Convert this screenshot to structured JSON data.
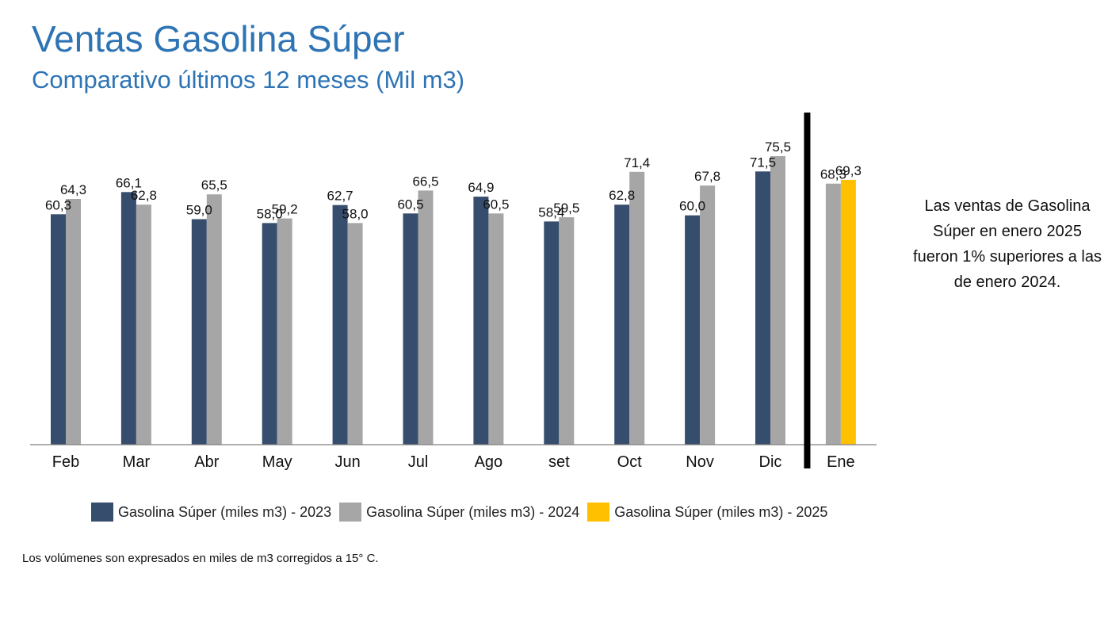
{
  "header": {
    "title": "Ventas Gasolina Súper",
    "subtitle": "Comparativo últimos 12 meses (Mil m3)"
  },
  "note": "Las ventas de Gasolina Súper en enero 2025 fueron 1% superiores a las de enero 2024.",
  "footnote": "Los volúmenes son expresados en miles de m3 corregidos a 15° C.",
  "colors": {
    "series_2023": "#374d6e",
    "series_2024": "#a6a6a6",
    "series_2025": "#ffc000",
    "title": "#2e74b5",
    "divider": "#000000"
  },
  "chart_data": {
    "type": "bar",
    "categories": [
      "Feb",
      "Mar",
      "Abr",
      "May",
      "Jun",
      "Jul",
      "Ago",
      "set",
      "Oct",
      "Nov",
      "Dic",
      "Ene"
    ],
    "series": [
      {
        "name": "Gasolina Súper (miles m3) - 2023",
        "values": [
          60.3,
          66.1,
          59.0,
          58.0,
          62.7,
          60.5,
          64.9,
          58.4,
          62.8,
          60.0,
          71.5,
          null
        ]
      },
      {
        "name": "Gasolina Súper (miles m3) - 2024",
        "values": [
          64.3,
          62.8,
          65.5,
          59.2,
          58.0,
          66.5,
          60.5,
          59.5,
          71.4,
          67.8,
          75.5,
          68.3
        ]
      },
      {
        "name": "Gasolina Súper (miles m3) - 2025",
        "values": [
          null,
          null,
          null,
          null,
          null,
          null,
          null,
          null,
          null,
          null,
          null,
          69.3
        ]
      }
    ],
    "data_labels": [
      [
        "60,3",
        "66,1",
        "59,0",
        "58,0",
        "62,7",
        "60,5",
        "64,9",
        "58,4",
        "62,8",
        "60,0",
        "71,5",
        null
      ],
      [
        "64,3",
        "62,8",
        "65,5",
        "59,2",
        "58,0",
        "66,5",
        "60,5",
        "59,5",
        "71,4",
        "67,8",
        "75,5",
        "68,3"
      ],
      [
        null,
        null,
        null,
        null,
        null,
        null,
        null,
        null,
        null,
        null,
        null,
        "69,3"
      ]
    ],
    "ylim": [
      0,
      75.5
    ],
    "grid": false,
    "legend_position": "bottom",
    "xlabel": "",
    "ylabel": ""
  }
}
